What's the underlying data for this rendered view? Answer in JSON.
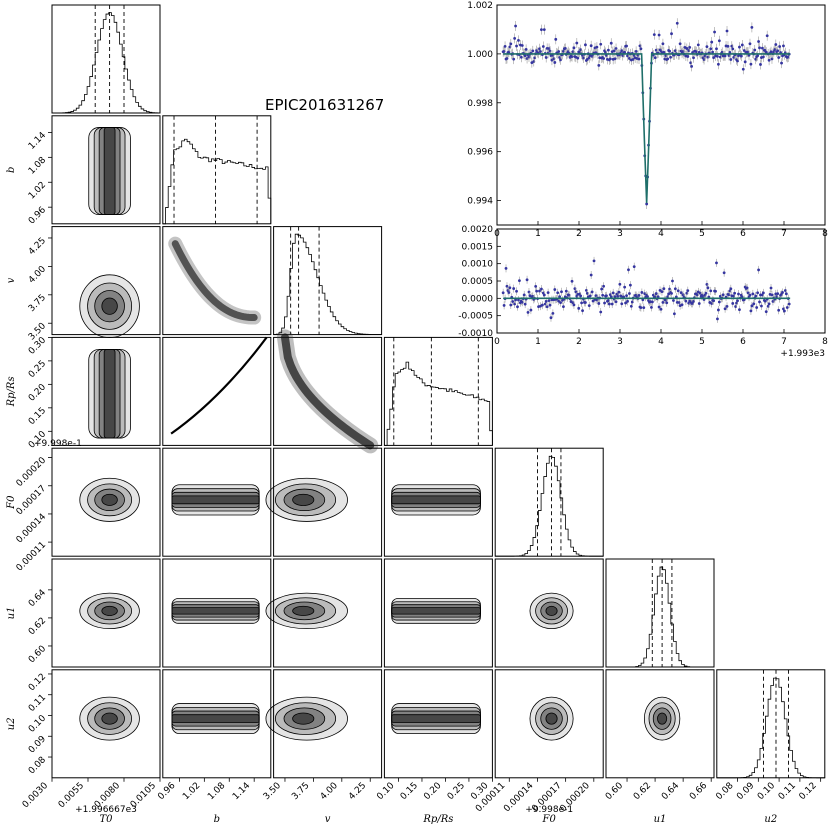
{
  "figure_title": "EPIC201631267",
  "chart_data": [
    {
      "type": "corner",
      "title": "EPIC201631267",
      "parameters": [
        {
          "name": "T0",
          "label": "T0",
          "range": [
            0.003,
            0.0105
          ],
          "ticks": [
            "0.0030",
            "0.0055",
            "0.0080",
            "0.0105"
          ],
          "offset_label": "+1.996667e3",
          "quantiles": [
            0.006,
            0.007,
            0.008
          ],
          "peak": 0.007,
          "sigma": 0.0009
        },
        {
          "name": "b",
          "label": "b",
          "range": [
            0.92,
            1.18
          ],
          "ticks": [
            "0.96",
            "1.02",
            "1.08",
            "1.14"
          ],
          "quantiles": [
            0.947,
            1.047,
            1.147
          ],
          "flat": true
        },
        {
          "name": "v",
          "label": "v",
          "range": [
            3.4,
            4.35
          ],
          "ticks": [
            "3.50",
            "3.75",
            "4.00",
            "4.25"
          ],
          "quantiles": [
            3.55,
            3.62,
            3.8
          ],
          "peak": 3.6,
          "skew": true
        },
        {
          "name": "RpRs",
          "label": "Rp/Rs",
          "range": [
            0.07,
            0.3
          ],
          "ticks": [
            "0.10",
            "0.15",
            "0.20",
            "0.25",
            "0.30"
          ],
          "quantiles": [
            0.09,
            0.17,
            0.27
          ],
          "flat": true
        },
        {
          "name": "F0",
          "label": "F0",
          "range": [
            9.5e-05,
            0.00021
          ],
          "ticks": [
            "0.00011",
            "0.00014",
            "0.00017",
            "0.00020"
          ],
          "offset_label": "+9.998e-1",
          "quantiles": [
            0.00014,
            0.000155,
            0.000165
          ],
          "peak": 0.000155,
          "sigma": 1e-05
        },
        {
          "name": "u1",
          "label": "u1",
          "range": [
            0.585,
            0.662
          ],
          "ticks": [
            "0.60",
            "0.62",
            "0.64",
            "0.66"
          ],
          "quantiles": [
            0.618,
            0.625,
            0.632
          ],
          "peak": 0.625,
          "sigma": 0.0055
        },
        {
          "name": "u2",
          "label": "u2",
          "range": [
            0.07,
            0.122
          ],
          "ticks": [
            "0.08",
            "0.09",
            "0.10",
            "0.11",
            "0.12"
          ],
          "quantiles": [
            0.0925,
            0.0985,
            0.1045
          ],
          "peak": 0.0985,
          "sigma": 0.0045
        }
      ],
      "row_tick_labels": {
        "b": [
          "0.96",
          "1.02",
          "1.08",
          "1.14"
        ],
        "v": [
          "3.50",
          "3.75",
          "4.00",
          "4.25"
        ],
        "RpRs": [
          "0.10",
          "0.15",
          "0.20",
          "0.25",
          "0.30"
        ],
        "F0": [
          "0.00011",
          "0.00014",
          "0.00017",
          "0.00020"
        ],
        "u1": [
          "0.60",
          "0.62",
          "0.64"
        ],
        "u2": [
          "0.08",
          "0.09",
          "0.10",
          "0.11",
          "0.12"
        ]
      }
    },
    {
      "type": "scatter",
      "name": "light_curve",
      "xlim": [
        0,
        8
      ],
      "ylim": [
        0.993,
        1.002
      ],
      "xticks": [
        "0",
        "1",
        "2",
        "3",
        "4",
        "5",
        "6",
        "7",
        "8"
      ],
      "yticks": [
        "0.994",
        "0.996",
        "0.998",
        "1.000",
        "1.002"
      ],
      "model": {
        "baseline": 1.0,
        "transit_center": 3.65,
        "depth": 0.0061,
        "half_width": 0.12
      },
      "points_count": 300
    },
    {
      "type": "scatter",
      "name": "residuals",
      "xlim": [
        0,
        8
      ],
      "ylim": [
        -0.001,
        0.002
      ],
      "xticks": [
        "0",
        "1",
        "2",
        "3",
        "4",
        "5",
        "6",
        "7",
        "8"
      ],
      "yticks": [
        "-0.0010",
        "-0.0005",
        "0.0000",
        "0.0005",
        "0.0010",
        "0.0015",
        "0.0020"
      ],
      "x_offset_label": "+1.993e3",
      "points_count": 300
    }
  ],
  "colors": {
    "points": "#3535a0",
    "errorbar": "#9a9a9a",
    "model": "#1f6f6a",
    "hist": "#000000",
    "density": "#000000"
  }
}
